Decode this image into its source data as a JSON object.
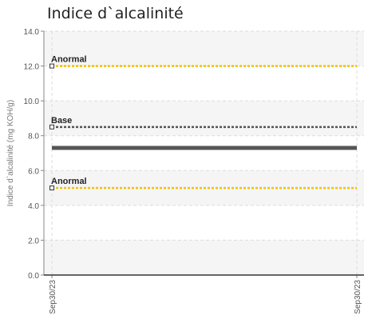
{
  "chart_data": {
    "type": "line",
    "title": "Indice d`alcalinité",
    "ylabel": "Indice d`alcalinité (mg KOH/g)",
    "xlabel": "",
    "ylim": [
      0,
      14
    ],
    "y_ticks": [
      "0.0",
      "2.0",
      "4.0",
      "6.0",
      "8.0",
      "10.0",
      "12.0",
      "14.0"
    ],
    "x_ticks": [
      "Sep30/23",
      "Sep30/23"
    ],
    "grid": true,
    "reference_lines": [
      {
        "label": "Anormal",
        "value": 12.0,
        "color": "#f2c200",
        "style": "dashed"
      },
      {
        "label": "Base",
        "value": 8.5,
        "color": "#555555",
        "style": "dashed"
      },
      {
        "label": "Anormal",
        "value": 5.0,
        "color": "#f2c200",
        "style": "dashed"
      }
    ],
    "series": [
      {
        "values": [
          7.3,
          7.3
        ],
        "color": "#555555"
      }
    ]
  }
}
